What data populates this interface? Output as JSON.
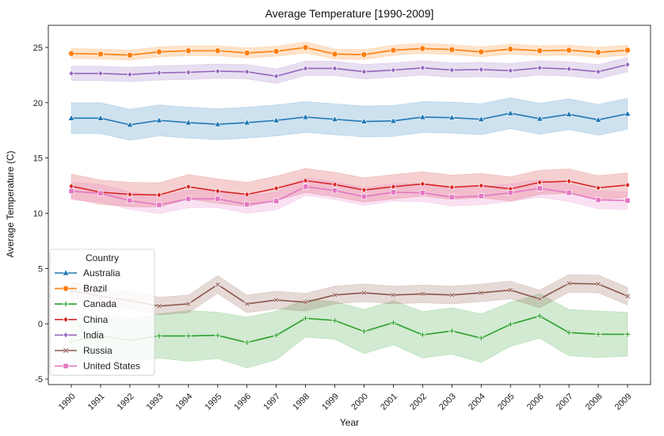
{
  "chart_data": {
    "type": "line",
    "title": "Average Temperature [1990-2009]",
    "xlabel": "Year",
    "ylabel": "Average Temperature (C)",
    "x": [
      "1990",
      "1991",
      "1992",
      "1993",
      "1994",
      "1995",
      "1996",
      "1997",
      "1998",
      "1999",
      "2000",
      "2001",
      "2002",
      "2003",
      "2004",
      "2005",
      "2006",
      "2007",
      "2008",
      "2009"
    ],
    "ylim": [
      -5.5,
      27
    ],
    "yticks": [
      -5,
      0,
      5,
      10,
      15,
      20,
      25
    ],
    "grid": false,
    "legend": {
      "title": "Country",
      "placement": "bottom-left"
    },
    "series": [
      {
        "name": "Australia",
        "color": "#1f77b4",
        "marker": "triangle",
        "values": [
          18.6,
          18.6,
          18.0,
          18.4,
          18.2,
          18.05,
          18.2,
          18.4,
          18.7,
          18.5,
          18.3,
          18.35,
          18.7,
          18.65,
          18.5,
          19.05,
          18.55,
          18.95,
          18.45,
          19.0
        ],
        "band": [
          1.4,
          1.4,
          1.4,
          1.4,
          1.4,
          1.4,
          1.4,
          1.4,
          1.4,
          1.4,
          1.4,
          1.4,
          1.4,
          1.4,
          1.4,
          1.4,
          1.4,
          1.4,
          1.4,
          1.4
        ]
      },
      {
        "name": "Brazil",
        "color": "#ff7f0e",
        "marker": "circle",
        "values": [
          24.45,
          24.4,
          24.3,
          24.6,
          24.7,
          24.7,
          24.5,
          24.65,
          25.0,
          24.4,
          24.35,
          24.75,
          24.9,
          24.8,
          24.6,
          24.85,
          24.7,
          24.75,
          24.55,
          24.75
        ],
        "band": [
          0.45,
          0.45,
          0.45,
          0.45,
          0.45,
          0.45,
          0.45,
          0.45,
          0.5,
          0.45,
          0.45,
          0.45,
          0.45,
          0.45,
          0.45,
          0.45,
          0.45,
          0.45,
          0.45,
          0.45
        ]
      },
      {
        "name": "Canada",
        "color": "#2ca02c",
        "marker": "plus",
        "values": [
          -1.6,
          -1.1,
          -1.5,
          -1.1,
          -1.1,
          -1.05,
          -1.7,
          -1.05,
          0.5,
          0.3,
          -0.7,
          0.1,
          -1.0,
          -0.65,
          -1.3,
          -0.05,
          0.7,
          -0.8,
          -0.95,
          -0.95
        ],
        "band": [
          2.0,
          2.0,
          2.0,
          2.0,
          2.3,
          2.1,
          2.3,
          2.2,
          1.7,
          1.7,
          2.0,
          2.0,
          2.1,
          2.1,
          2.2,
          2.0,
          2.0,
          2.1,
          2.1,
          2.0
        ]
      },
      {
        "name": "China",
        "color": "#d62728",
        "marker": "diamond",
        "values": [
          12.45,
          11.9,
          11.7,
          11.65,
          12.4,
          12.0,
          11.7,
          12.25,
          12.95,
          12.6,
          12.1,
          12.4,
          12.65,
          12.35,
          12.5,
          12.2,
          12.8,
          12.9,
          12.3,
          12.55
        ],
        "band": [
          1.1,
          1.1,
          1.1,
          1.1,
          1.1,
          1.1,
          1.1,
          1.1,
          1.1,
          1.1,
          1.1,
          1.1,
          1.1,
          1.1,
          1.1,
          1.1,
          1.1,
          1.1,
          1.1,
          1.1
        ]
      },
      {
        "name": "India",
        "color": "#9467bd",
        "marker": "diamond",
        "values": [
          22.65,
          22.65,
          22.55,
          22.7,
          22.75,
          22.85,
          22.8,
          22.4,
          23.1,
          23.1,
          22.8,
          22.95,
          23.15,
          22.95,
          23.0,
          22.9,
          23.15,
          23.05,
          22.8,
          23.45
        ],
        "band": [
          0.65,
          0.65,
          0.65,
          0.65,
          0.65,
          0.65,
          0.65,
          0.65,
          0.65,
          0.65,
          0.65,
          0.65,
          0.65,
          0.65,
          0.65,
          0.65,
          0.65,
          0.65,
          0.65,
          0.65
        ]
      },
      {
        "name": "Russia",
        "color": "#8c564b",
        "marker": "x",
        "values": [
          3.0,
          2.5,
          2.1,
          1.6,
          1.8,
          3.55,
          1.8,
          2.15,
          1.95,
          2.6,
          2.8,
          2.6,
          2.7,
          2.6,
          2.8,
          3.05,
          2.25,
          3.65,
          3.6,
          2.5
        ],
        "band": [
          0.8,
          0.8,
          0.8,
          0.8,
          0.8,
          0.8,
          0.8,
          0.8,
          0.8,
          0.8,
          0.8,
          0.8,
          0.8,
          0.8,
          0.8,
          0.8,
          0.8,
          0.8,
          0.8,
          0.8
        ]
      },
      {
        "name": "United States",
        "color": "#e377c2",
        "marker": "square",
        "values": [
          12.0,
          11.8,
          11.15,
          10.75,
          11.3,
          11.3,
          10.8,
          11.1,
          12.4,
          12.05,
          11.5,
          11.9,
          11.85,
          11.45,
          11.55,
          11.85,
          12.25,
          11.85,
          11.2,
          11.15
        ],
        "band": [
          0.8,
          0.8,
          0.8,
          0.8,
          0.8,
          0.8,
          0.8,
          0.8,
          0.8,
          0.8,
          0.8,
          0.8,
          0.8,
          0.8,
          0.8,
          0.8,
          0.8,
          0.8,
          0.8,
          0.8
        ]
      }
    ]
  }
}
